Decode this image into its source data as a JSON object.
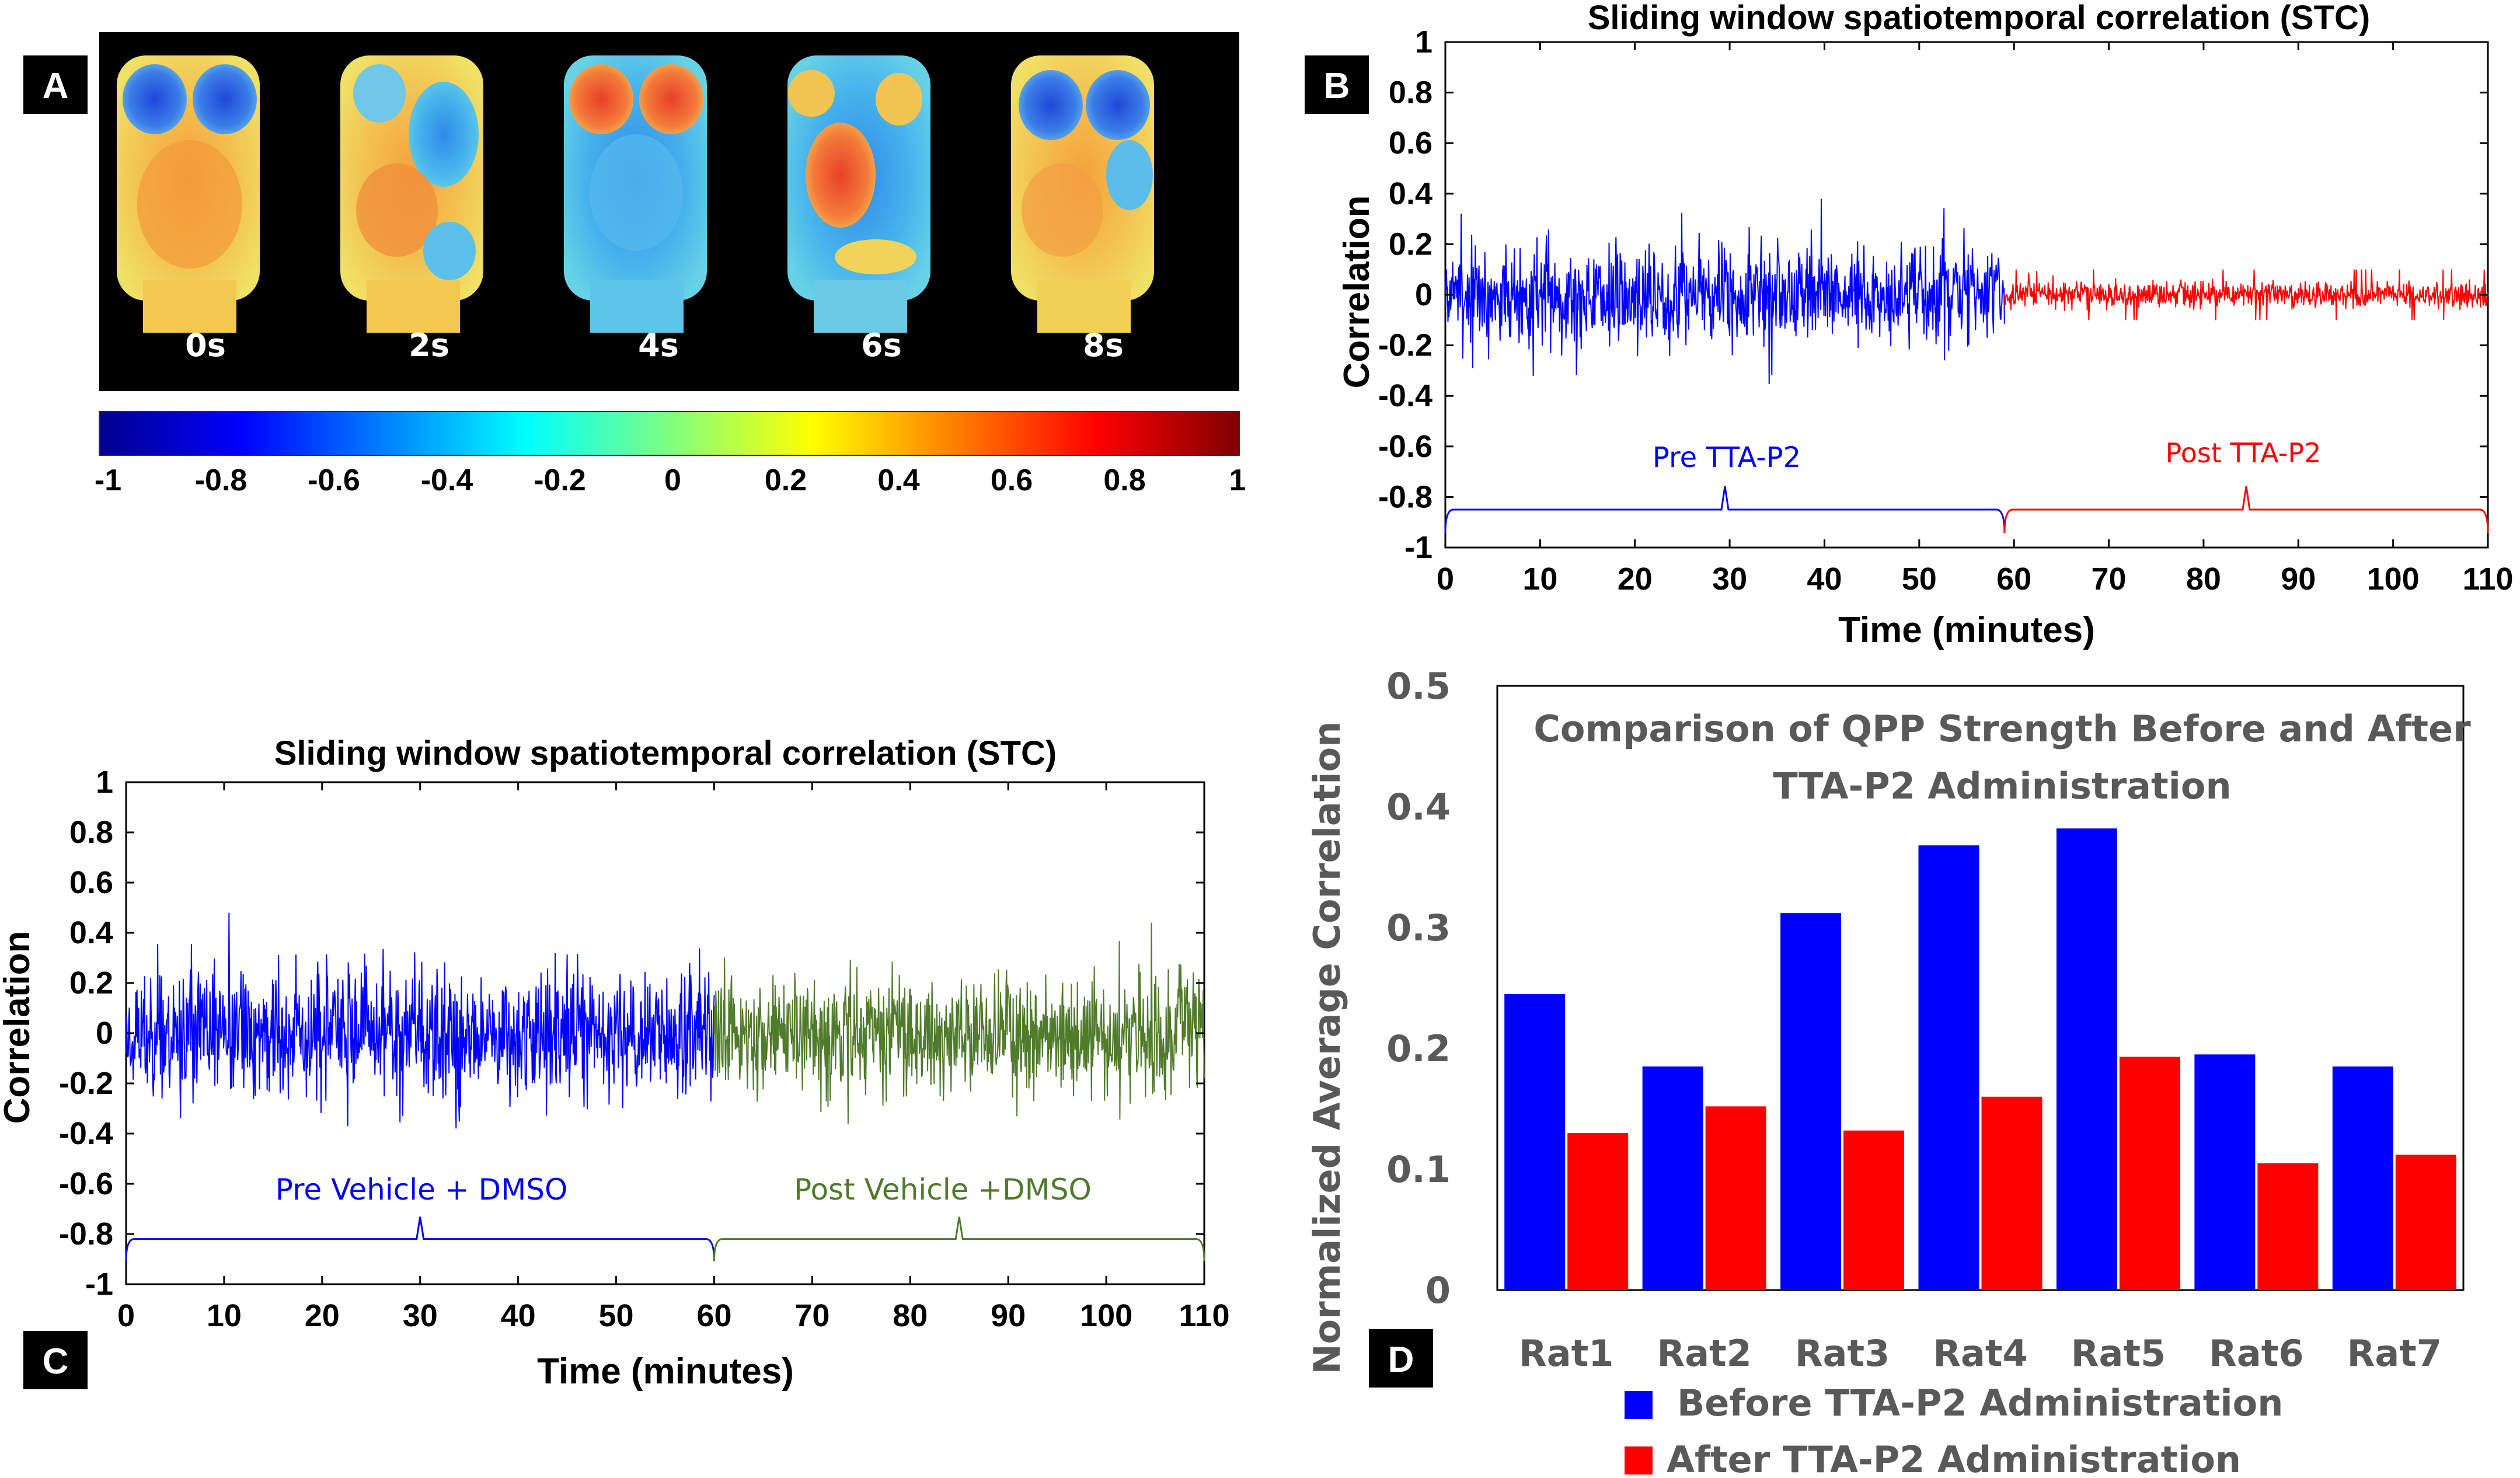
{
  "colors": {
    "pre": "#0000ff",
    "post_drug": "#ff0000",
    "post_vehicle": "#4f7b2b",
    "bar_before": "#0000ff",
    "bar_after": "#ff0000",
    "dark_text": "#595959"
  },
  "panel_a": {
    "letter": "A",
    "frames": [
      "0s",
      "2s",
      "4s",
      "6s",
      "8s"
    ],
    "colorbar_ticks": [
      "-1",
      "-0.8",
      "-0.6",
      "-0.4",
      "-0.2",
      "0",
      "0.2",
      "0.4",
      "0.6",
      "0.8",
      "1"
    ]
  },
  "panel_b": {
    "letter": "B",
    "pre_label": "Pre TTA-P2",
    "post_label": "Post TTA-P2"
  },
  "panel_c": {
    "letter": "C",
    "pre_label": "Pre Vehicle + DMSO",
    "post_label": "Post Vehicle +DMSO"
  },
  "panel_d": {
    "letter": "D"
  },
  "chart_data": [
    {
      "id": "B",
      "type": "line",
      "title": "Sliding window spatiotemporal correlation (STC)",
      "xlabel": "Time (minutes)",
      "ylabel": "Correlation",
      "xlim": [
        0,
        110
      ],
      "ylim": [
        -1,
        1
      ],
      "xticks": [
        "0",
        "10",
        "20",
        "30",
        "40",
        "50",
        "60",
        "70",
        "80",
        "90",
        "100",
        "110"
      ],
      "yticks": [
        "1",
        "0.8",
        "0.6",
        "0.4",
        "0.2",
        "0",
        "-0.2",
        "-0.4",
        "-0.6",
        "-0.8",
        "-1"
      ],
      "split_minute": 59,
      "series": [
        {
          "name": "Pre TTA-P2",
          "x_range": [
            0,
            59
          ],
          "amplitude": 0.38
        },
        {
          "name": "Post TTA-P2",
          "x_range": [
            59,
            110
          ],
          "amplitude": 0.1
        }
      ]
    },
    {
      "id": "C",
      "type": "line",
      "title": "Sliding window spatiotemporal correlation (STC)",
      "xlabel": "Time (minutes)",
      "ylabel": "Correlation",
      "xlim": [
        0,
        110
      ],
      "ylim": [
        -1,
        1
      ],
      "xticks": [
        "0",
        "10",
        "20",
        "30",
        "40",
        "50",
        "60",
        "70",
        "80",
        "90",
        "100",
        "110"
      ],
      "yticks": [
        "1",
        "0.8",
        "0.6",
        "0.4",
        "0.2",
        "0",
        "-0.2",
        "-0.4",
        "-0.6",
        "-0.8",
        "-1"
      ],
      "split_minute": 60,
      "series": [
        {
          "name": "Pre Vehicle + DMSO",
          "x_range": [
            0,
            60
          ],
          "amplitude": 0.5
        },
        {
          "name": "Post Vehicle +DMSO",
          "x_range": [
            60,
            110
          ],
          "amplitude": 0.44
        }
      ]
    },
    {
      "id": "D",
      "type": "bar",
      "title": "Comparison of QPP Strength  Before and After TTA-P2 Administration",
      "title_lines": [
        "Comparison of QPP Strength  Before and After",
        "TTA-P2 Administration"
      ],
      "xlabel": "",
      "ylabel": "Normalized Average Correlation",
      "categories": [
        "Rat1",
        "Rat2",
        "Rat3",
        "Rat4",
        "Rat5",
        "Rat6",
        "Rat7"
      ],
      "ylim": [
        0,
        0.5
      ],
      "yticks": [
        "0",
        "0.1",
        "0.2",
        "0.3",
        "0.4",
        "0.5"
      ],
      "series": [
        {
          "name": "Before TTA-P2 Administration",
          "values": [
            0.245,
            0.185,
            0.312,
            0.368,
            0.382,
            0.195,
            0.185
          ]
        },
        {
          "name": "After TTA-P2 Administration",
          "values": [
            0.13,
            0.152,
            0.132,
            0.16,
            0.193,
            0.105,
            0.112
          ]
        }
      ]
    }
  ]
}
